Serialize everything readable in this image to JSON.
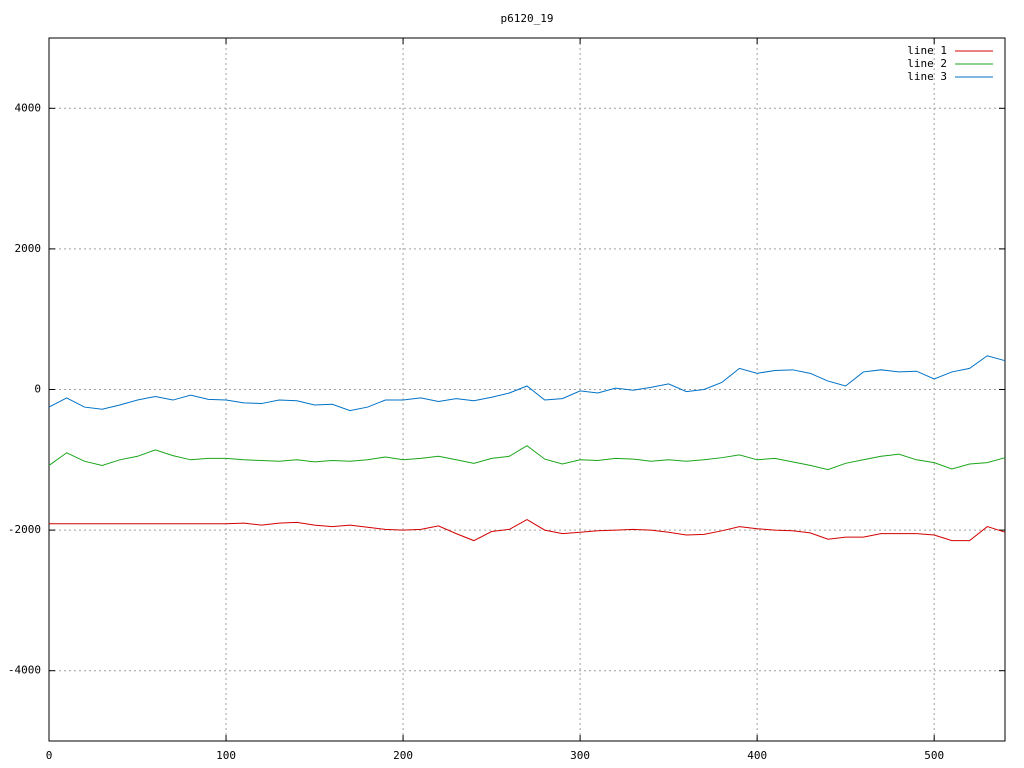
{
  "chart_data": {
    "type": "line",
    "title": "p6120_19",
    "x": [
      0,
      10,
      20,
      30,
      40,
      50,
      60,
      70,
      80,
      90,
      100,
      110,
      120,
      130,
      140,
      150,
      160,
      170,
      180,
      190,
      200,
      210,
      220,
      230,
      240,
      250,
      260,
      270,
      280,
      290,
      300,
      310,
      320,
      330,
      340,
      350,
      360,
      370,
      380,
      390,
      400,
      410,
      420,
      430,
      440,
      450,
      460,
      470,
      480,
      490,
      500,
      510,
      520,
      530,
      540
    ],
    "series": [
      {
        "name": "line 1",
        "color": "#d40000",
        "values": [
          -1910,
          -1910,
          -1910,
          -1910,
          -1910,
          -1910,
          -1910,
          -1910,
          -1910,
          -1910,
          -1910,
          -1900,
          -1930,
          -1900,
          -1890,
          -1930,
          -1950,
          -1930,
          -1960,
          -1990,
          -2000,
          -1990,
          -1940,
          -2050,
          -2150,
          -2020,
          -1990,
          -1850,
          -2000,
          -2050,
          -2030,
          -2010,
          -2000,
          -1990,
          -2000,
          -2030,
          -2070,
          -2060,
          -2010,
          -1950,
          -1980,
          -2000,
          -2010,
          -2040,
          -2130,
          -2100,
          -2100,
          -2050,
          -2050,
          -2050,
          -2070,
          -2150,
          -2150,
          -1950,
          -2030
        ]
      },
      {
        "name": "line 2",
        "color": "#1aa51a",
        "values": [
          -1080,
          -900,
          -1020,
          -1080,
          -1000,
          -950,
          -860,
          -940,
          -1000,
          -980,
          -980,
          -1000,
          -1010,
          -1020,
          -1000,
          -1030,
          -1010,
          -1020,
          -1000,
          -960,
          -1000,
          -980,
          -950,
          -1000,
          -1050,
          -980,
          -950,
          -800,
          -990,
          -1060,
          -1000,
          -1010,
          -980,
          -990,
          -1020,
          -1000,
          -1020,
          -1000,
          -970,
          -930,
          -1000,
          -980,
          -1030,
          -1080,
          -1140,
          -1050,
          -1000,
          -950,
          -920,
          -1000,
          -1040,
          -1130,
          -1060,
          -1040,
          -970
        ]
      },
      {
        "name": "line 3",
        "color": "#0072c6",
        "values": [
          -250,
          -120,
          -250,
          -280,
          -220,
          -150,
          -100,
          -150,
          -80,
          -140,
          -150,
          -190,
          -200,
          -150,
          -160,
          -220,
          -210,
          -300,
          -250,
          -150,
          -150,
          -120,
          -170,
          -130,
          -160,
          -110,
          -50,
          50,
          -150,
          -130,
          -20,
          -50,
          20,
          -10,
          30,
          80,
          -30,
          0,
          100,
          300,
          230,
          270,
          280,
          230,
          120,
          50,
          250,
          280,
          250,
          260,
          150,
          250,
          300,
          480,
          410
        ]
      }
    ],
    "xlim": [
      0,
      540
    ],
    "ylim": [
      -5000,
      5000
    ],
    "xticks": [
      0,
      100,
      200,
      300,
      400,
      500
    ],
    "yticks": [
      -4000,
      -2000,
      0,
      2000,
      4000
    ],
    "grid": true,
    "legend": "top-right"
  }
}
